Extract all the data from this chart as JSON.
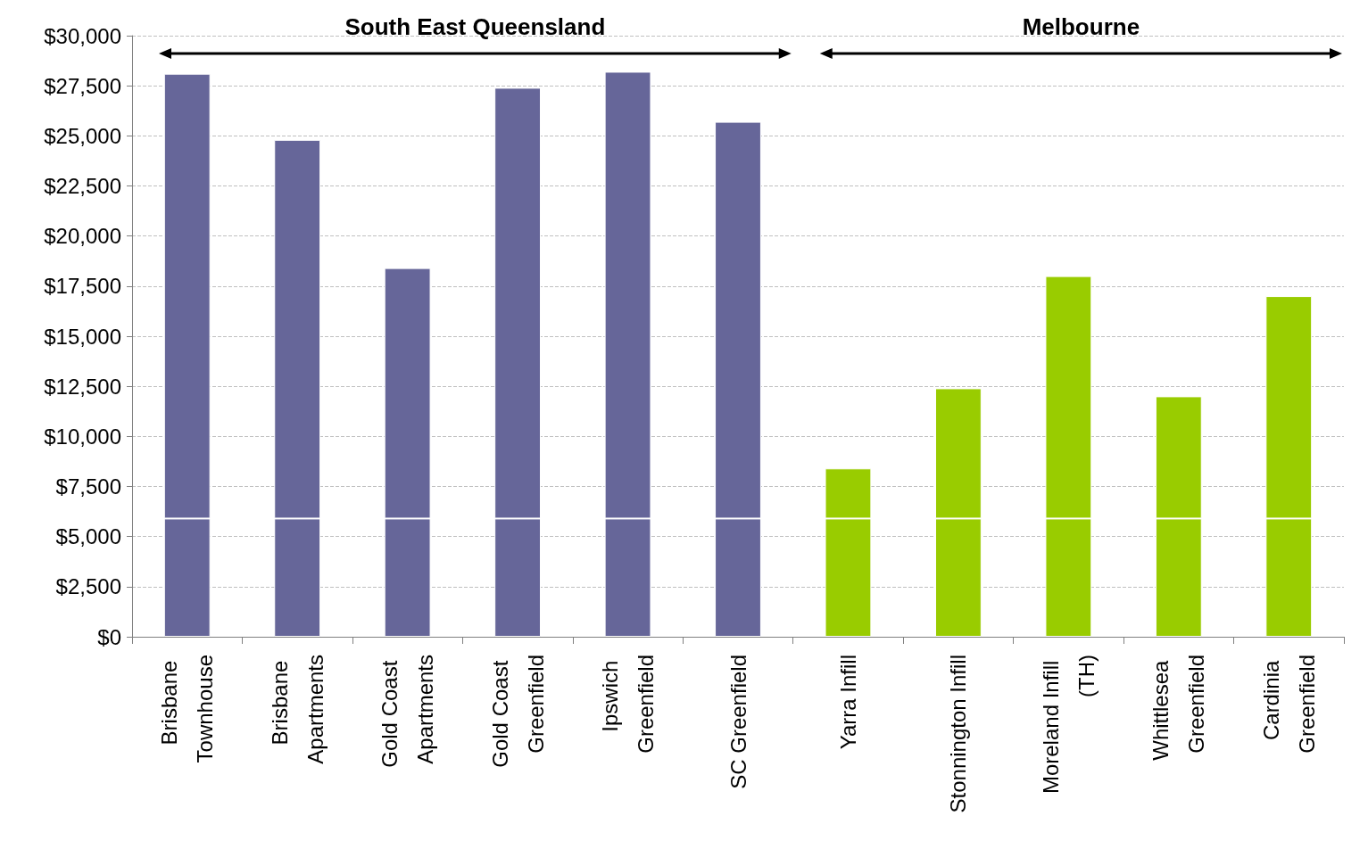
{
  "chart_data": {
    "type": "bar",
    "stacked": true,
    "categories": [
      "Brisbane Townhouse",
      "Brisbane Apartments",
      "Gold Coast Apartments",
      "Gold Coast Greenfield",
      "Ipswich Greenfield",
      "SC Greenfield",
      "Yarra Infill",
      "Stonnington Infill",
      "Moreland Infill (TH)",
      "Whittlesea Greenfield",
      "Cardinia Greenfield"
    ],
    "series": [
      {
        "colors": [
          "#666699",
          "#666699",
          "#666699",
          "#666699",
          "#666699",
          "#666699",
          "#99cc00",
          "#99cc00",
          "#99cc00",
          "#99cc00",
          "#99cc00"
        ],
        "values": [
          5900,
          5900,
          5900,
          5900,
          5900,
          5900,
          5900,
          5900,
          5900,
          5900,
          5900
        ]
      },
      {
        "colors": [
          "#666699",
          "#666699",
          "#666699",
          "#666699",
          "#666699",
          "#666699",
          "#99cc00",
          "#99cc00",
          "#99cc00",
          "#99cc00",
          "#99cc00"
        ],
        "values": [
          22200,
          18900,
          12500,
          21500,
          22300,
          19800,
          2500,
          6500,
          12100,
          6100,
          11100
        ]
      }
    ],
    "ylim": [
      0,
      30000
    ],
    "yticks": [
      {
        "value": 0,
        "label": "$0"
      },
      {
        "value": 2500,
        "label": "$2,500"
      },
      {
        "value": 5000,
        "label": "$5,000"
      },
      {
        "value": 7500,
        "label": "$7,500"
      },
      {
        "value": 10000,
        "label": "$10,000"
      },
      {
        "value": 12500,
        "label": "$12,500"
      },
      {
        "value": 15000,
        "label": "$15,000"
      },
      {
        "value": 17500,
        "label": "$17,500"
      },
      {
        "value": 20000,
        "label": "$20,000"
      },
      {
        "value": 22500,
        "label": "$22,500"
      },
      {
        "value": 25000,
        "label": "$25,000"
      },
      {
        "value": 27500,
        "label": "$27,500"
      },
      {
        "value": 30000,
        "label": "$30,000"
      }
    ],
    "grid": "y",
    "annotations": [
      "South East Queensland",
      "Melbourne"
    ]
  }
}
